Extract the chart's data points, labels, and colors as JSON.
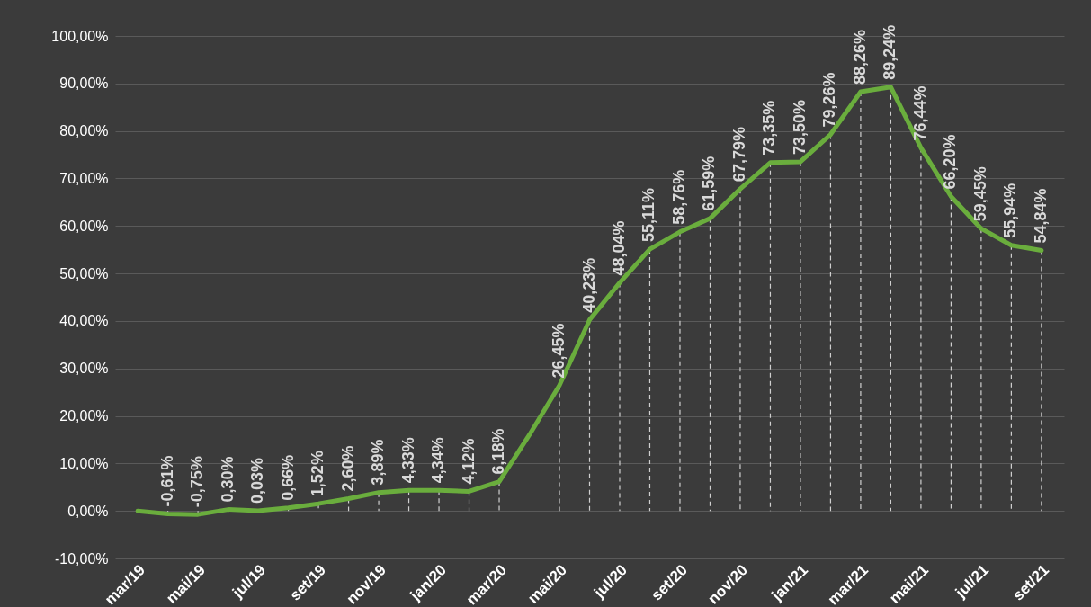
{
  "chart_data": {
    "type": "line",
    "categories": [
      "mar/19",
      null,
      "mai/19",
      null,
      "jul/19",
      null,
      "set/19",
      null,
      "nov/19",
      null,
      "jan/20",
      null,
      "mar/20",
      null,
      "mai/20",
      null,
      "jul/20",
      null,
      "set/20",
      null,
      "nov/20",
      null,
      "jan/21",
      null,
      "mar/21",
      null,
      "mai/21",
      null,
      "jul/21",
      null,
      "set/21"
    ],
    "series": [
      {
        "color": "#6aad3d",
        "values": [
          0,
          -0.61,
          -0.75,
          0.3,
          0.03,
          0.66,
          1.52,
          2.6,
          3.89,
          4.33,
          4.34,
          4.12,
          6.18,
          16,
          26.45,
          40.23,
          48.04,
          55.11,
          58.76,
          61.59,
          67.79,
          73.35,
          73.5,
          79.26,
          88.26,
          89.24,
          76.44,
          66.2,
          59.45,
          55.94,
          54.84
        ],
        "value_labels": [
          null,
          "-0,61%",
          "-0,75%",
          "0,30%",
          "0,03%",
          "0,66%",
          "1,52%",
          "2,60%",
          "3,89%",
          "4,33%",
          "4,34%",
          "4,12%",
          "6,18%",
          null,
          "26,45%",
          "40,23%",
          "48,04%",
          "55,11%",
          "58,76%",
          "61,59%",
          "67,79%",
          "73,35%",
          "73,50%",
          "79,26%",
          "88,26%",
          "89,24%",
          "76,44%",
          "66,20%",
          "59,45%",
          "55,94%",
          "54,84%"
        ]
      }
    ],
    "ylim": [
      -10,
      100
    ],
    "yticks": [
      {
        "value": -10,
        "label": "-10,00%"
      },
      {
        "value": 0,
        "label": "0,00%"
      },
      {
        "value": 10,
        "label": "10,00%"
      },
      {
        "value": 20,
        "label": "20,00%"
      },
      {
        "value": 30,
        "label": "30,00%"
      },
      {
        "value": 40,
        "label": "40,00%"
      },
      {
        "value": 50,
        "label": "50,00%"
      },
      {
        "value": 60,
        "label": "60,00%"
      },
      {
        "value": 70,
        "label": "70,00%"
      },
      {
        "value": 80,
        "label": "80,00%"
      },
      {
        "value": 90,
        "label": "90,00%"
      },
      {
        "value": 100,
        "label": "100,00%"
      }
    ],
    "grid": "y",
    "marker": "none",
    "line_style": "solid"
  }
}
